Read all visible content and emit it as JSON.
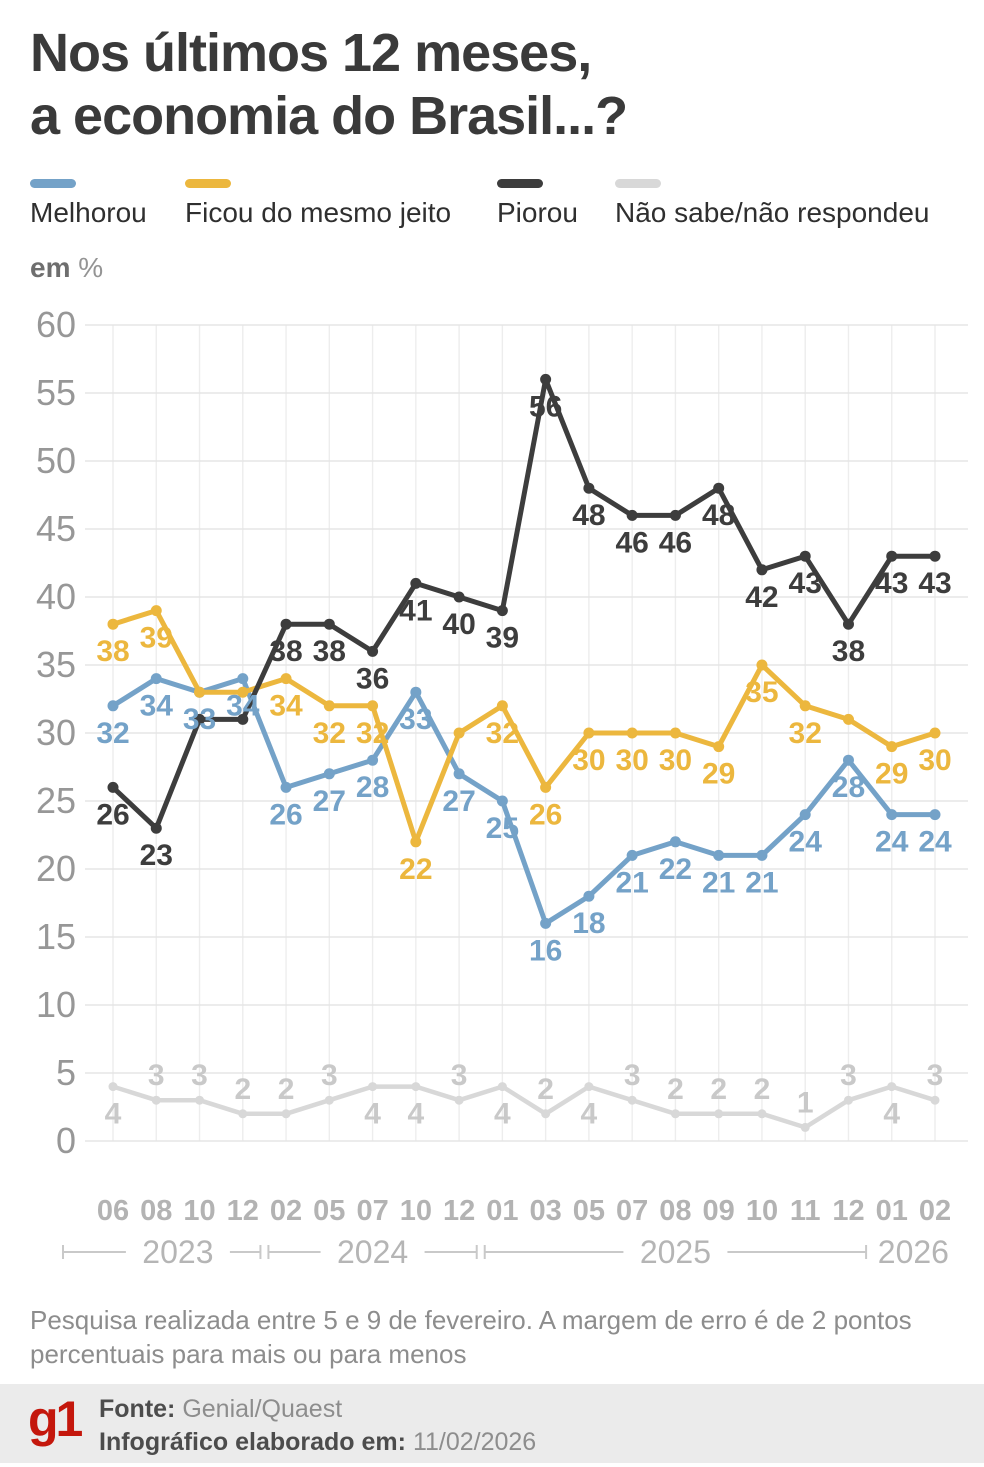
{
  "title": {
    "line1": "Nos últimos 12 meses,",
    "line2": "a economia do Brasil...?"
  },
  "unit": {
    "bold": "em",
    "symbol": "%"
  },
  "legend": [
    {
      "label": "Melhorou",
      "color": "#74a2c8"
    },
    {
      "label": "Ficou do mesmo jeito",
      "color": "#ecb73e"
    },
    {
      "label": "Piorou",
      "color": "#3d3d3d"
    },
    {
      "label": "Não sabe/não respondeu",
      "color": "#d8d8d8"
    }
  ],
  "chart_data": {
    "type": "line",
    "unit": "%",
    "x_categories": [
      "06",
      "08",
      "10",
      "12",
      "02",
      "05",
      "07",
      "10",
      "12",
      "01",
      "03",
      "05",
      "07",
      "08",
      "09",
      "10",
      "11",
      "12",
      "01",
      "02"
    ],
    "year_groups": [
      {
        "label": "2023",
        "start": 0,
        "end": 3,
        "bracket": true
      },
      {
        "label": "2024",
        "start": 4,
        "end": 8,
        "bracket": true
      },
      {
        "label": "2025",
        "start": 9,
        "end": 17,
        "bracket": true
      },
      {
        "label": "2026",
        "start": 18,
        "end": 19,
        "bracket": false
      }
    ],
    "ylim": [
      0,
      60
    ],
    "ytick_step": 5,
    "grid": true,
    "legend_position": "top",
    "series": [
      {
        "name": "Melhorou",
        "color": "#74a2c8",
        "values": [
          32,
          34,
          33,
          34,
          26,
          27,
          28,
          33,
          27,
          25,
          16,
          18,
          21,
          22,
          21,
          21,
          24,
          28,
          24,
          24
        ],
        "label_side": "below",
        "hidden_labels": []
      },
      {
        "name": "Ficou do mesmo jeito",
        "color": "#ecb73e",
        "values": [
          38,
          39,
          33,
          33,
          34,
          32,
          32,
          22,
          30,
          32,
          26,
          30,
          30,
          30,
          29,
          35,
          32,
          31,
          29,
          30
        ],
        "label_side": "below",
        "hidden_labels": [
          2,
          3,
          8,
          17
        ]
      },
      {
        "name": "Piorou",
        "color": "#3d3d3d",
        "values": [
          26,
          23,
          31,
          31,
          38,
          38,
          36,
          41,
          40,
          39,
          56,
          48,
          46,
          46,
          48,
          42,
          43,
          38,
          43,
          43
        ],
        "label_side": "below",
        "hidden_labels": [
          2,
          3
        ]
      },
      {
        "name": "Não sabe/não respondeu",
        "color": "#d8d8d8",
        "label_color": "#c9c9c9",
        "values": [
          4,
          3,
          3,
          2,
          2,
          3,
          4,
          4,
          3,
          4,
          2,
          4,
          3,
          2,
          2,
          2,
          1,
          3,
          4,
          3
        ],
        "label_sides": [
          "below",
          "above",
          "above",
          "above",
          "above",
          "above",
          "below",
          "below",
          "above",
          "below",
          "above",
          "below",
          "above",
          "above",
          "above",
          "above",
          "above",
          "above",
          "below",
          "above"
        ],
        "hidden_labels": []
      }
    ]
  },
  "footnote": {
    "line1": "Pesquisa realizada entre 5 e 9 de fevereiro. A margem de erro é de 2 pontos",
    "line2": "percentuais para mais ou para menos"
  },
  "footer": {
    "logo_text": "g1",
    "source_label": "Fonte:",
    "source_value": "Genial/Quaest",
    "elaborated_label": "Infográfico elaborado em:",
    "elaborated_value": "11/02/2026"
  }
}
